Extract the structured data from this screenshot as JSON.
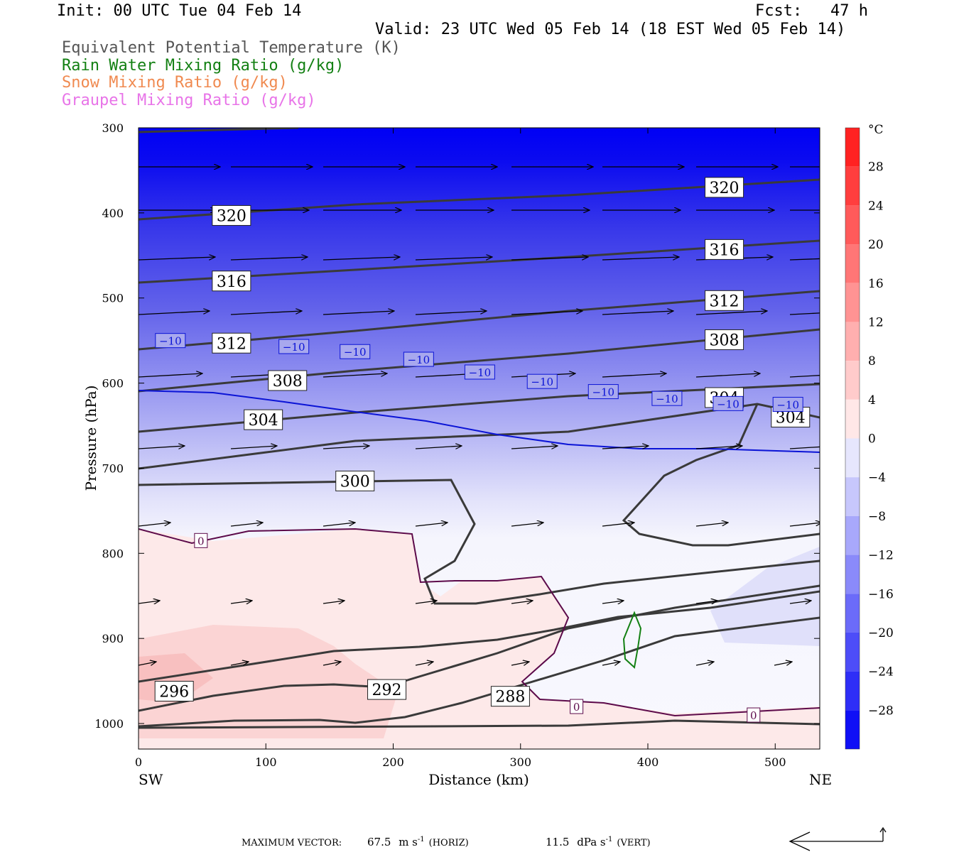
{
  "header": {
    "init": "Init: 00 UTC Tue 04 Feb 14",
    "fcst": "Fcst:   47 h",
    "valid": "Valid: 23 UTC Wed 05 Feb 14 (18 EST Wed 05 Feb 14)"
  },
  "legend": [
    {
      "label": "Equivalent Potential Temperature (K)",
      "color": "#555555"
    },
    {
      "label": "Rain Water Mixing Ratio (g/kg)",
      "color": "#138013"
    },
    {
      "label": "Snow Mixing Ratio (g/kg)",
      "color": "#F08A50"
    },
    {
      "label": "Graupel Mixing Ratio (g/kg)",
      "color": "#E874E8"
    }
  ],
  "chart_data": {
    "type": "cross-section",
    "xlabel": "Distance (km)",
    "ylabel": "Pressure (hPa)",
    "xlim": [
      0,
      535
    ],
    "ylim": [
      1030,
      300
    ],
    "x_ticks": [
      "0",
      "100",
      "200",
      "300",
      "400",
      "500"
    ],
    "y_ticks": [
      "300",
      "400",
      "500",
      "600",
      "700",
      "800",
      "900",
      "1000"
    ],
    "x_left_label": "SW",
    "x_right_label": "NE",
    "colorbar": {
      "unit": "°C",
      "ticks": [
        "28",
        "24",
        "20",
        "16",
        "12",
        "8",
        "4",
        "0",
        "-4",
        "-8",
        "-12",
        "-16",
        "-20",
        "-24",
        "-28"
      ],
      "range": [
        -32,
        32
      ]
    },
    "theta_e_labels": [
      {
        "text": "320",
        "x": 73,
        "p": 403
      },
      {
        "text": "320",
        "x": 460,
        "p": 370
      },
      {
        "text": "316",
        "x": 73,
        "p": 480
      },
      {
        "text": "316",
        "x": 460,
        "p": 443
      },
      {
        "text": "312",
        "x": 73,
        "p": 553
      },
      {
        "text": "312",
        "x": 460,
        "p": 503
      },
      {
        "text": "308",
        "x": 117,
        "p": 597
      },
      {
        "text": "308",
        "x": 460,
        "p": 549
      },
      {
        "text": "304",
        "x": 98,
        "p": 643
      },
      {
        "text": "304",
        "x": 460,
        "p": 617
      },
      {
        "text": "304",
        "x": 512,
        "p": 640
      },
      {
        "text": "300",
        "x": 170,
        "p": 715
      },
      {
        "text": "296",
        "x": 28,
        "p": 962
      },
      {
        "text": "292",
        "x": 195,
        "p": 960
      },
      {
        "text": "288",
        "x": 292,
        "p": 968
      }
    ],
    "temp_labels": [
      {
        "text": "-10",
        "x": 25,
        "p": 550
      },
      {
        "text": "-10",
        "x": 122,
        "p": 557
      },
      {
        "text": "-10",
        "x": 170,
        "p": 563
      },
      {
        "text": "-10",
        "x": 220,
        "p": 572
      },
      {
        "text": "-10",
        "x": 268,
        "p": 587
      },
      {
        "text": "-10",
        "x": 317,
        "p": 598
      },
      {
        "text": "-10",
        "x": 365,
        "p": 610
      },
      {
        "text": "-10",
        "x": 415,
        "p": 618
      },
      {
        "text": "-10",
        "x": 463,
        "p": 624
      },
      {
        "text": "-10",
        "x": 510,
        "p": 625
      },
      {
        "text": "0",
        "x": 49,
        "p": 785
      },
      {
        "text": "0",
        "x": 344,
        "p": 980
      },
      {
        "text": "0",
        "x": 483,
        "p": 990
      }
    ],
    "max_vector": {
      "label": "MAXIMUM VECTOR:",
      "horiz_value": "67.5",
      "horiz_unit": "m s",
      "horiz_exp": "-1",
      "horiz_tag": "(HORIZ)",
      "vert_value": "11.5",
      "vert_unit": "dPa s",
      "vert_exp": "-1",
      "vert_tag": "(VERT)"
    }
  }
}
